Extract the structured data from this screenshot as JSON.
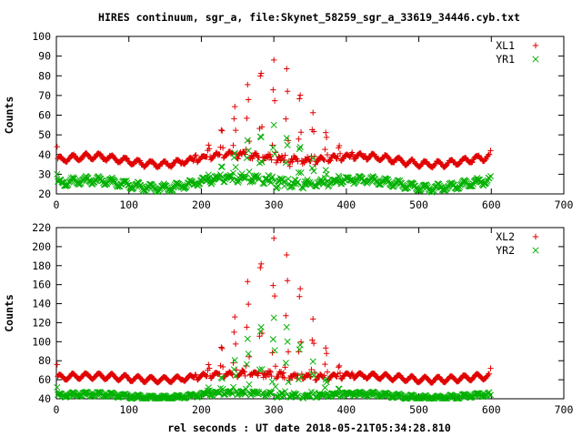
{
  "title": "HIRES continuum, sgr_a, file:Skynet_58259_sgr_a_33619_34446.cyb.txt",
  "xlabel": "rel seconds : UT date 2018-05-21T05:34:28.810",
  "colors": {
    "red": "#e00000",
    "green": "#00b000"
  },
  "chart_data": [
    {
      "type": "scatter",
      "ylabel": "Counts",
      "xlim": [
        0,
        700
      ],
      "ylim": [
        20,
        100
      ],
      "xticks": [
        0,
        100,
        200,
        300,
        400,
        500,
        600,
        700
      ],
      "yticks": [
        20,
        30,
        40,
        50,
        60,
        70,
        80,
        90,
        100
      ],
      "legend_position": "top-right",
      "series": [
        {
          "name": "XL1",
          "marker": "plus",
          "color": "#e00000",
          "baseline": 37,
          "peak_amp": 52,
          "peak_width": 55,
          "osc_amp": 5,
          "osc_period": 18,
          "x_range": [
            0,
            600
          ],
          "edge_values": [
            44,
            42
          ]
        },
        {
          "name": "YR1",
          "marker": "cross",
          "color": "#00b000",
          "baseline": 25,
          "peak_amp": 29,
          "peak_width": 55,
          "osc_amp": 6,
          "osc_period": 18,
          "x_range": [
            0,
            600
          ],
          "edge_values": [
            30,
            29
          ]
        }
      ]
    },
    {
      "type": "scatter",
      "ylabel": "Counts",
      "xlim": [
        0,
        700
      ],
      "ylim": [
        40,
        220
      ],
      "xticks": [
        0,
        100,
        200,
        300,
        400,
        500,
        600,
        700
      ],
      "yticks": [
        40,
        60,
        80,
        100,
        120,
        140,
        160,
        180,
        200,
        220
      ],
      "legend_position": "top-right",
      "series": [
        {
          "name": "XL2",
          "marker": "plus",
          "color": "#e00000",
          "baseline": 62,
          "peak_amp": 145,
          "peak_width": 50,
          "osc_amp": 10,
          "osc_period": 18,
          "x_range": [
            0,
            600
          ],
          "edge_values": [
            76,
            72
          ]
        },
        {
          "name": "YR2",
          "marker": "cross",
          "color": "#00b000",
          "baseline": 43,
          "peak_amp": 85,
          "peak_width": 50,
          "osc_amp": 7,
          "osc_period": 18,
          "x_range": [
            0,
            600
          ],
          "edge_values": [
            52,
            44
          ]
        }
      ]
    }
  ]
}
